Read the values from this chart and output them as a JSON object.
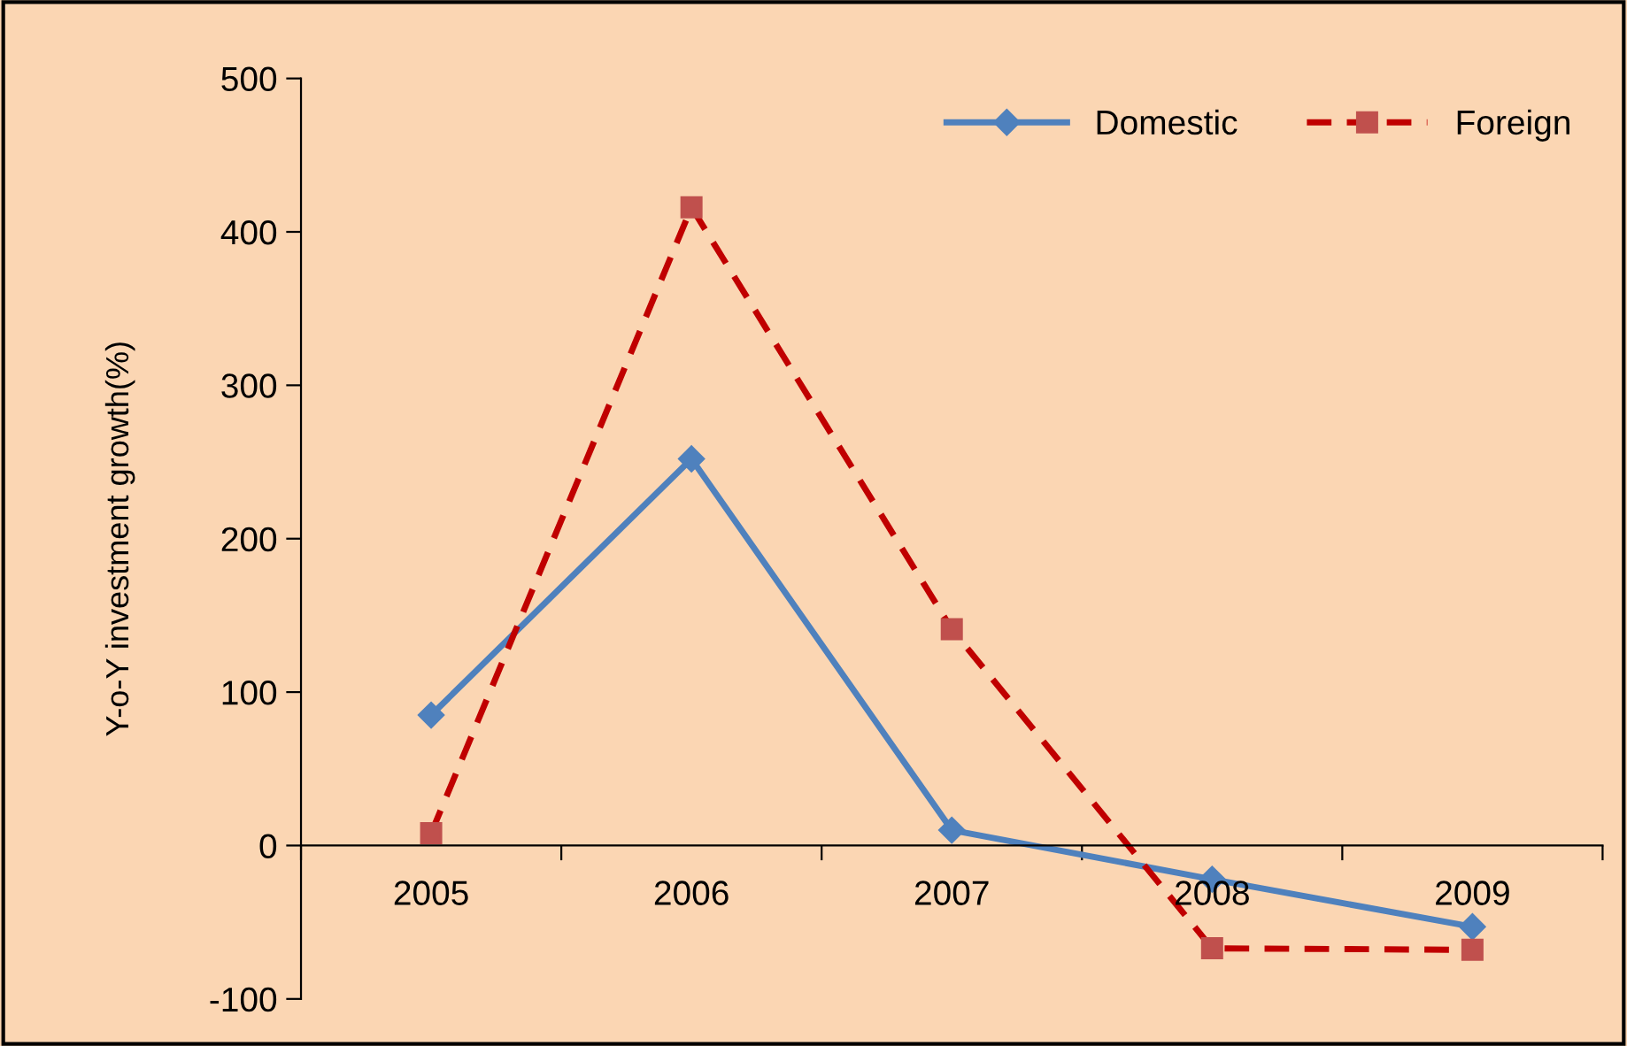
{
  "chart_data": {
    "type": "line",
    "ylabel": "Y-o-Y investment growth(%)",
    "categories": [
      "2005",
      "2006",
      "2007",
      "2008",
      "2009"
    ],
    "series": [
      {
        "name": "Domestic",
        "color": "#4f81bd",
        "values": [
          85,
          252,
          10,
          -22,
          -53
        ],
        "marker": "diamond",
        "line_style": "solid"
      },
      {
        "name": "Foreign",
        "color": "#c0504d",
        "values": [
          8,
          416,
          141,
          -67,
          -68
        ],
        "marker": "square",
        "line_style": "dashed"
      }
    ],
    "ylim": [
      -100,
      500
    ],
    "yticks": [
      -100,
      0,
      100,
      200,
      300,
      400,
      500
    ],
    "legend": "top right"
  }
}
